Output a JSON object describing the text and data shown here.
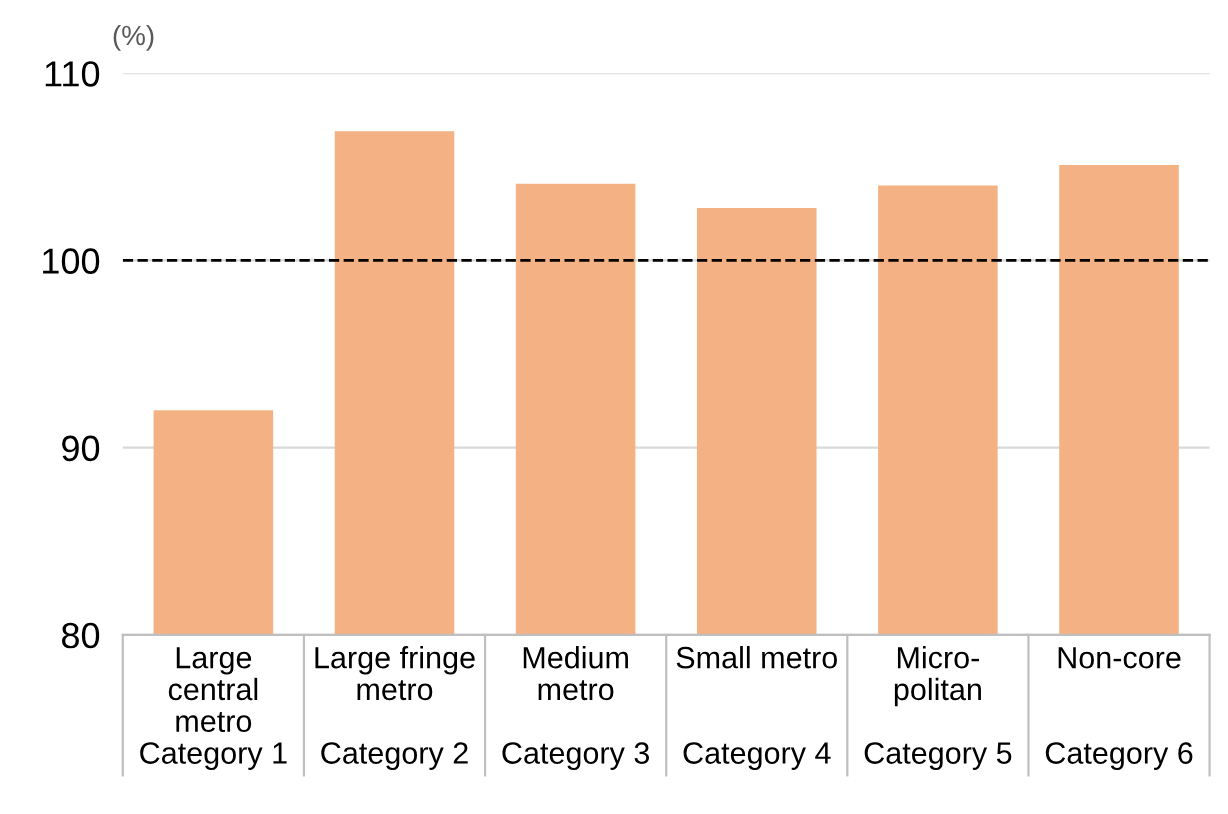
{
  "chart_data": {
    "type": "bar",
    "ylabel": "(%)",
    "categories": [
      "Large\ncentral\nmetro\nCategory 1",
      "Large fringe\nmetro\n\nCategory 2",
      "Medium\nmetro\n\nCategory 3",
      "Small metro\n\n\nCategory 4",
      "Micro-\npolitan\n\nCategory 5",
      "Non-core\n\n\nCategory 6"
    ],
    "values": [
      92.0,
      106.9,
      104.1,
      102.8,
      104.0,
      105.1
    ],
    "color": "#f4b183",
    "ylim": [
      80,
      110
    ],
    "yticks": [
      80,
      90,
      100,
      110
    ],
    "grid": "y",
    "ref_lines": [
      {
        "axis": "y",
        "value": 100,
        "color": "#000000",
        "line_style": "dashed"
      }
    ]
  }
}
